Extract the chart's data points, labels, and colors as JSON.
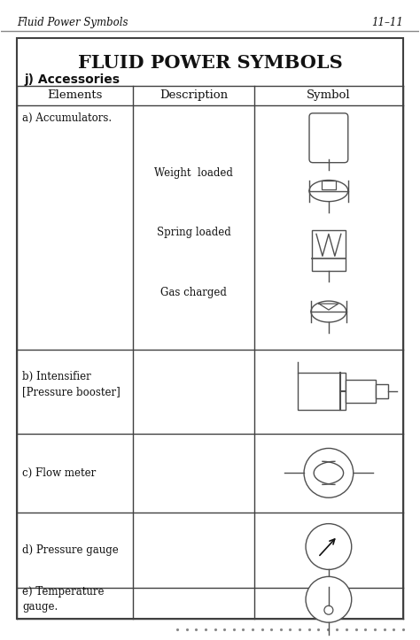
{
  "title": "FLUID POWER SYMBOLS",
  "subtitle": "j) Accessories",
  "header_left": "Fluid Power Symbols",
  "header_right": "11–11",
  "col_headers": [
    "Elements",
    "Description",
    "Symbol"
  ],
  "bg_color": "#ffffff",
  "border_color": "#404040",
  "text_color": "#111111",
  "lc": "#505050",
  "acc_descs": [
    "Weight  loaded",
    "Spring loaded",
    "Gas charged"
  ]
}
